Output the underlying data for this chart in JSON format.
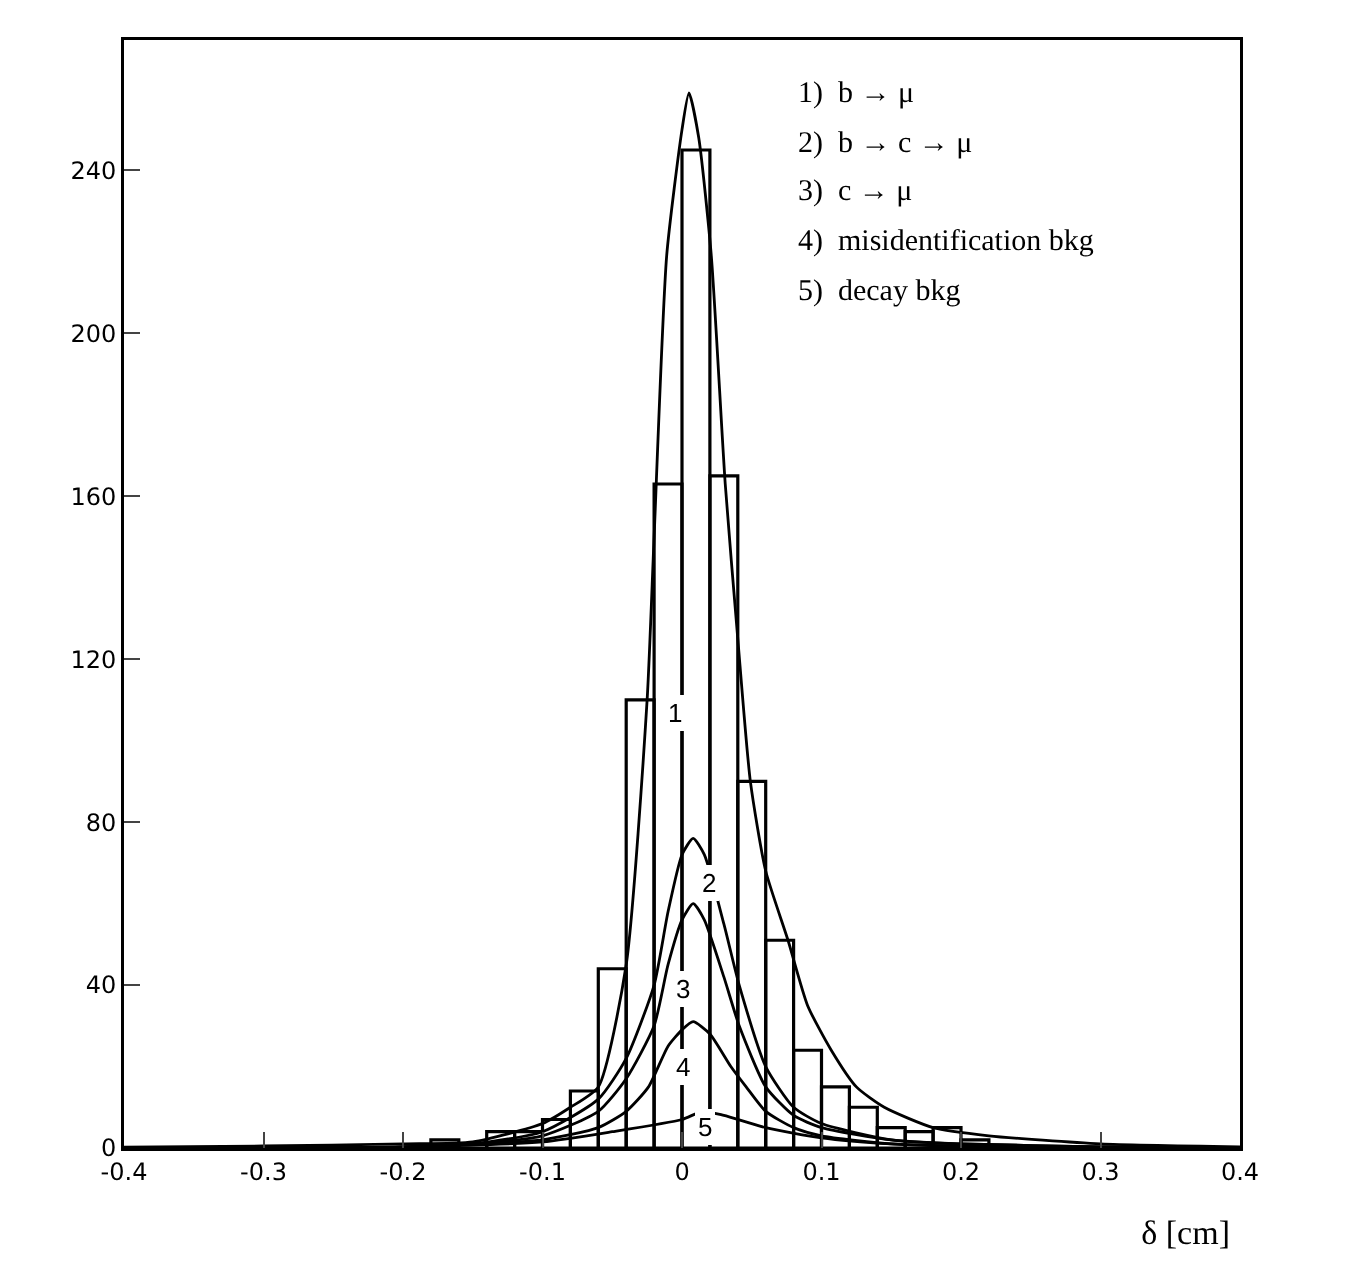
{
  "chart_data": {
    "type": "histogram",
    "xlabel": "δ [cm]",
    "bins": [
      -0.4,
      -0.38,
      -0.36,
      -0.34,
      -0.32,
      -0.3,
      -0.28,
      -0.26,
      -0.24,
      -0.22,
      -0.2,
      -0.18,
      -0.16,
      -0.14,
      -0.12,
      -0.1,
      -0.08,
      -0.06,
      -0.04,
      -0.02,
      0,
      0.02,
      0.04,
      0.06,
      0.08,
      0.1,
      0.12,
      0.14,
      0.16,
      0.18,
      0.2,
      0.22,
      0.24,
      0.26,
      0.28,
      0.3,
      0.32,
      0.34,
      0.36,
      0.38,
      0.4
    ],
    "values": [
      0,
      0,
      0,
      0,
      0,
      0,
      0,
      0,
      0,
      0,
      0,
      2,
      1,
      4,
      4,
      7,
      14,
      44,
      110,
      163,
      245,
      165,
      90,
      51,
      24,
      15,
      10,
      5,
      4,
      5,
      2,
      0,
      0,
      0,
      0,
      0,
      0,
      0,
      0,
      0
    ],
    "color": "#000000",
    "series": [
      {
        "type": "line",
        "color": "#000000",
        "x": [
          -0.4,
          -0.3,
          -0.2,
          -0.15,
          -0.1,
          -0.08,
          -0.06,
          -0.04,
          -0.025,
          -0.02,
          -0.011,
          0,
          0.005,
          0.012,
          0.021,
          0.031,
          0.04,
          0.049,
          0.06,
          0.076,
          0.09,
          0.107,
          0.125,
          0.145,
          0.18,
          0.22,
          0.3,
          0.4
        ],
        "values": [
          0.2,
          0.5,
          1,
          1.5,
          6,
          10,
          15,
          45,
          110,
          150,
          219,
          250,
          259,
          248,
          219,
          163,
          125,
          90,
          68,
          51,
          35,
          24,
          15,
          10,
          5,
          3,
          1,
          0.3
        ]
      },
      {
        "type": "line",
        "color": "#000000",
        "x": [
          -0.4,
          -0.2,
          -0.15,
          -0.1,
          -0.06,
          -0.04,
          -0.02,
          -0.01,
          0,
          0.008,
          0.016,
          0.03,
          0.041,
          0.06,
          0.08,
          0.1,
          0.15,
          0.2,
          0.3,
          0.4
        ],
        "values": [
          0,
          0.3,
          1,
          4,
          12,
          22,
          40,
          58,
          72,
          76,
          72,
          55,
          40,
          20,
          10,
          6,
          2,
          1,
          0.3,
          0
        ]
      },
      {
        "type": "line",
        "color": "#000000",
        "x": [
          -0.4,
          -0.2,
          -0.15,
          -0.1,
          -0.06,
          -0.04,
          -0.02,
          -0.01,
          0,
          0.008,
          0.016,
          0.03,
          0.041,
          0.06,
          0.08,
          0.1,
          0.15,
          0.2,
          0.3,
          0.4
        ],
        "values": [
          0,
          0.3,
          1,
          3,
          9,
          17,
          30,
          45,
          56,
          60,
          56,
          42,
          30,
          15,
          8,
          5,
          2,
          1,
          0.3,
          0
        ]
      },
      {
        "type": "line",
        "color": "#000000",
        "x": [
          -0.4,
          -0.2,
          -0.15,
          -0.1,
          -0.06,
          -0.04,
          -0.024,
          -0.01,
          0,
          0.008,
          0.02,
          0.035,
          0.046,
          0.06,
          0.08,
          0.1,
          0.15,
          0.2,
          0.3,
          0.4
        ],
        "values": [
          0,
          0.2,
          1,
          2,
          5,
          9,
          15,
          25,
          29,
          31,
          28,
          20,
          15,
          9,
          5,
          3,
          1,
          0.5,
          0.2,
          0
        ]
      },
      {
        "type": "line",
        "color": "#000000",
        "x": [
          -0.4,
          -0.2,
          -0.1,
          -0.05,
          0,
          0.015,
          0.03,
          0.06,
          0.1,
          0.15,
          0.2,
          0.3,
          0.4
        ],
        "values": [
          0,
          0.3,
          1.5,
          4,
          7,
          9,
          8,
          5,
          2.5,
          1,
          0.4,
          0.1,
          0
        ]
      }
    ],
    "xlim": [
      -0.4,
      0.4
    ],
    "xticks": [
      -0.4,
      -0.3,
      -0.2,
      -0.1,
      0,
      0.1,
      0.2,
      0.3,
      0.4
    ],
    "ylim": [
      0,
      272
    ],
    "yticks": [
      0,
      40,
      80,
      120,
      160,
      200,
      240
    ],
    "grid": false,
    "annotations": [
      {
        "text": "1",
        "x": -0.005,
        "y": 107
      },
      {
        "text": "2",
        "x": 0.019,
        "y": 65
      },
      {
        "text": "3",
        "x": 0.001,
        "y": 39
      },
      {
        "text": "4",
        "x": 0.001,
        "y": 20
      },
      {
        "text": "5",
        "x": 0.017,
        "y": 5
      },
      "1)  b → μ",
      "2)  b → c → μ",
      "3)  c → μ",
      "4)  misidentification bkg",
      "5)  decay bkg"
    ]
  }
}
